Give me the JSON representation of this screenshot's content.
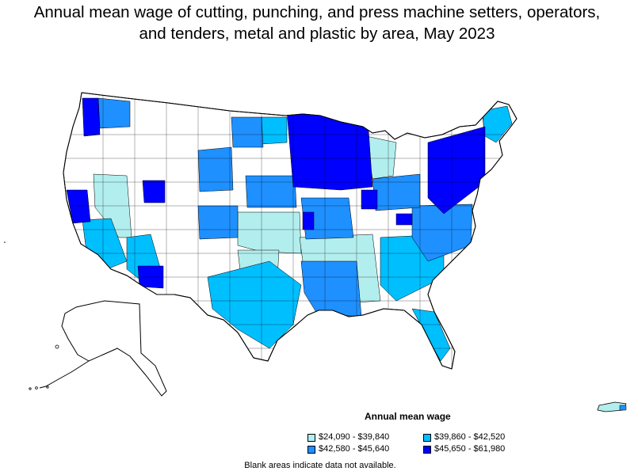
{
  "title": {
    "line1": "Annual mean wage of cutting, punching, and press machine setters, operators,",
    "line2": "and tenders, metal and plastic by area, May 2023"
  },
  "legend": {
    "title": "Annual mean wage",
    "items": [
      {
        "label": "$24,090 - $39,840",
        "color": "#b3eeee"
      },
      {
        "label": "$39,860 - $42,520",
        "color": "#00bfff"
      },
      {
        "label": "$42,580 - $45,640",
        "color": "#1e90ff"
      },
      {
        "label": "$45,650 - $61,980",
        "color": "#0000ff"
      }
    ]
  },
  "footnote": "Blank areas indicate data not available.",
  "map": {
    "outline_color": "#000000",
    "blank_color": "#ffffff"
  }
}
